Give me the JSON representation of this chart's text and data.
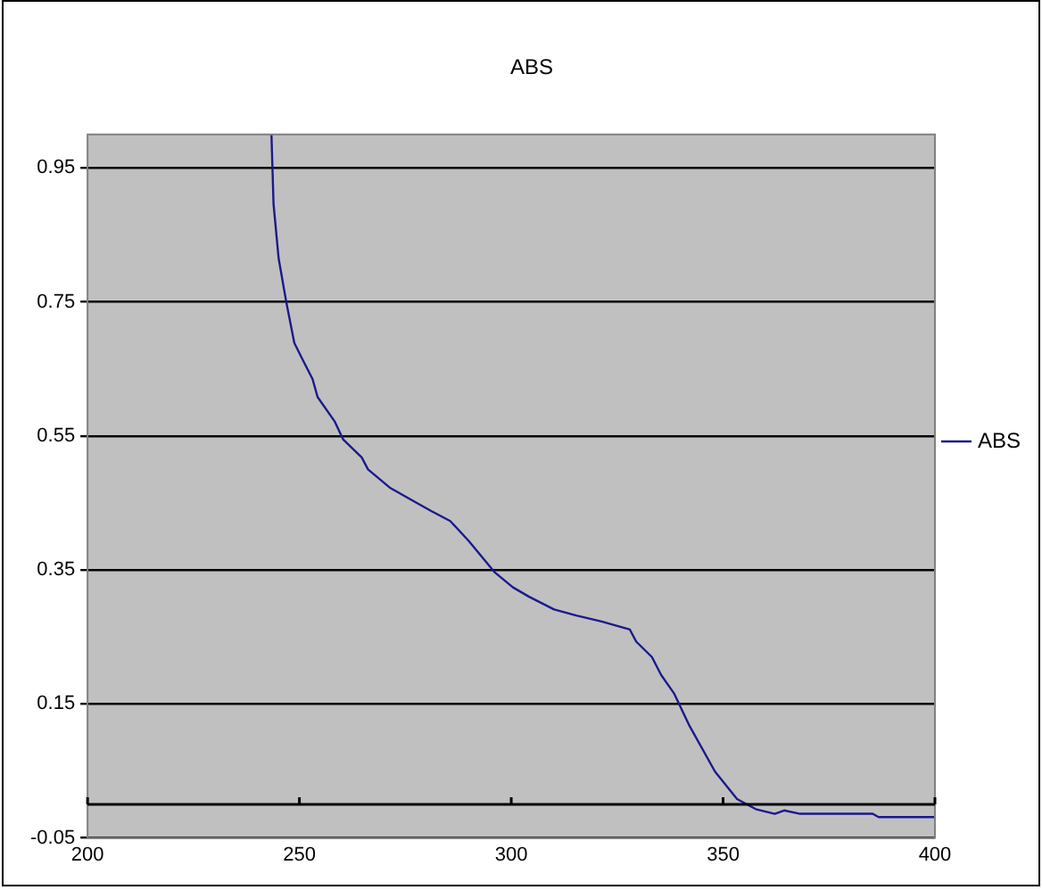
{
  "chart_data": {
    "type": "line",
    "title": "ABS",
    "x": [
      243.4,
      243.9,
      245.1,
      246.9,
      248.8,
      250.6,
      253.1,
      254.3,
      258.3,
      260.3,
      264.7,
      266.2,
      271.3,
      276.6,
      281.1,
      285.6,
      290.0,
      293.0,
      296.0,
      300.4,
      304.2,
      310.1,
      315.3,
      321.3,
      328.0,
      329.5,
      333.2,
      335.4,
      338.4,
      342.1,
      348.1,
      353.3,
      357.7,
      362.2,
      364.4,
      368.2,
      385.3,
      386.7,
      400.0
    ],
    "series": [
      {
        "name": "ABS",
        "color": "#1a1a8c",
        "values": [
          1.0,
          0.896,
          0.815,
          0.75,
          0.689,
          0.666,
          0.635,
          0.608,
          0.572,
          0.545,
          0.518,
          0.5,
          0.473,
          0.454,
          0.438,
          0.423,
          0.393,
          0.37,
          0.347,
          0.324,
          0.31,
          0.291,
          0.282,
          0.273,
          0.261,
          0.243,
          0.22,
          0.193,
          0.166,
          0.117,
          0.049,
          0.008,
          -0.007,
          -0.014,
          -0.009,
          -0.014,
          -0.014,
          -0.019,
          -0.019
        ]
      }
    ],
    "xlim": [
      200,
      400
    ],
    "xticks": [
      200,
      250,
      300,
      350,
      400
    ],
    "ylim": [
      -0.05,
      1.0
    ],
    "yticks": [
      -0.05,
      0.15,
      0.35,
      0.55,
      0.75,
      0.95
    ],
    "ref_lines": [
      {
        "axis": "y",
        "value": 0,
        "color": "#000000"
      }
    ],
    "grid": "y",
    "legend": "right",
    "marker": "none",
    "line_style": "solid"
  }
}
